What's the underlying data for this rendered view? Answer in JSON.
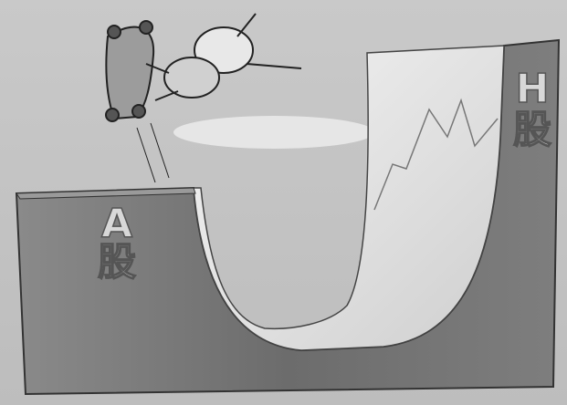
{
  "left_ramp": {
    "letter": "A",
    "char": "股"
  },
  "right_ramp": {
    "letter": "H",
    "char": "股"
  }
}
